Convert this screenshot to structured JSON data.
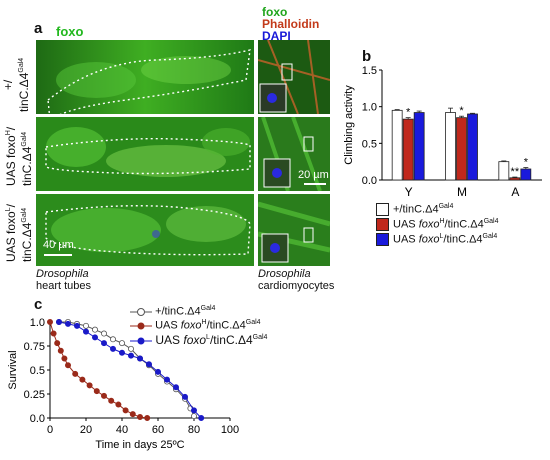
{
  "panel_a": {
    "letter": "a",
    "foxo_label": "foxo",
    "right_labels": {
      "foxo": "foxo",
      "phalloidin": "Phalloidin",
      "dapi": "DAPI"
    },
    "row_labels": [
      [
        "+/",
        "tinC.Δ4"
      ],
      [
        "UAS foxo",
        "tinC.Δ4"
      ],
      [
        "UAS foxo",
        "tinC.Δ4"
      ]
    ],
    "scale_left": "40 µm",
    "scale_right": "20 µm",
    "caption_left": [
      "Drosophila",
      "heart tubes"
    ],
    "caption_right": [
      "Drosophila",
      "cardiomyocytes"
    ]
  },
  "chart_data": [
    {
      "type": "bar",
      "panel": "b",
      "ylabel": "Climbing activity",
      "categories": [
        "Y",
        "M",
        "A"
      ],
      "ylim": [
        0,
        1.5
      ],
      "yticks": [
        "0.0",
        "0.5",
        "1.0",
        "1.5"
      ],
      "series": [
        {
          "name": "+/tinC.Δ4Gal4",
          "color": "#ffffff",
          "values": [
            0.95,
            0.92,
            0.25
          ],
          "errors": [
            0.01,
            0.06,
            0.01
          ]
        },
        {
          "name": "UAS foxoH/tinC.Δ4Gal4",
          "color": "#c0281c",
          "values": [
            0.83,
            0.85,
            0.03
          ],
          "errors": [
            0.02,
            0.02,
            0.01
          ]
        },
        {
          "name": "UAS foxoL/tinC.Δ4Gal4",
          "color": "#1a1adc",
          "values": [
            0.92,
            0.9,
            0.15
          ],
          "errors": [
            0.02,
            0.01,
            0.02
          ]
        }
      ],
      "annotations": [
        {
          "category": "Y",
          "series": 1,
          "text": "*"
        },
        {
          "category": "M",
          "series": 1,
          "text": "*"
        },
        {
          "category": "A",
          "series": 1,
          "text": "**"
        },
        {
          "category": "A",
          "series": 2,
          "text": "*"
        }
      ]
    },
    {
      "type": "line",
      "panel": "c",
      "ylabel": "Survival",
      "xlabel": "Time in days 25ºC",
      "xlim": [
        0,
        100
      ],
      "ylim": [
        0,
        1.0
      ],
      "xticks": [
        "0",
        "20",
        "40",
        "60",
        "80",
        "100"
      ],
      "yticks": [
        "0.0",
        "0.25",
        "0.5",
        "0.75",
        "1.0"
      ],
      "series": [
        {
          "name": "+/tinC.Δ4Gal4",
          "marker": "open",
          "color": "#555555",
          "x": [
            5,
            10,
            15,
            20,
            25,
            30,
            35,
            40,
            45,
            50,
            55,
            60,
            65,
            70,
            75,
            78,
            80
          ],
          "y": [
            1.0,
            1.0,
            0.98,
            0.96,
            0.92,
            0.88,
            0.82,
            0.78,
            0.72,
            0.62,
            0.55,
            0.46,
            0.38,
            0.3,
            0.2,
            0.1,
            0.02
          ]
        },
        {
          "name": "UAS foxoH/tinC.Δ4Gal4",
          "marker": "filled",
          "color": "#9a2a1a",
          "x": [
            0,
            2,
            4,
            6,
            8,
            10,
            14,
            18,
            22,
            26,
            30,
            34,
            38,
            42,
            46,
            50,
            54
          ],
          "y": [
            1.0,
            0.88,
            0.78,
            0.7,
            0.62,
            0.55,
            0.46,
            0.4,
            0.34,
            0.28,
            0.23,
            0.18,
            0.14,
            0.08,
            0.04,
            0.01,
            0.0
          ]
        },
        {
          "name": "UAS foxoL/tinC.Δ4Gal4",
          "marker": "filled",
          "color": "#1a1ac8",
          "x": [
            5,
            10,
            15,
            20,
            25,
            30,
            35,
            40,
            45,
            50,
            55,
            60,
            65,
            70,
            75,
            80,
            84
          ],
          "y": [
            1.0,
            0.98,
            0.96,
            0.9,
            0.84,
            0.78,
            0.72,
            0.68,
            0.65,
            0.62,
            0.56,
            0.48,
            0.4,
            0.32,
            0.22,
            0.08,
            0.0
          ]
        }
      ]
    }
  ],
  "panel_b_letter": "b",
  "panel_c_letter": "c",
  "legend_b": [
    {
      "base": "+/tinC.Δ4",
      "sup": "Gal4",
      "color": "#ffffff"
    },
    {
      "base_pre": "UAS ",
      "italic": "foxo",
      "sup1": "H",
      "base_post": "/tinC.Δ4",
      "sup": "Gal4",
      "color": "#c0281c"
    },
    {
      "base_pre": "UAS ",
      "italic": "foxo",
      "sup1": "L",
      "base_post": "/tinC.Δ4",
      "sup": "Gal4",
      "color": "#1a1adc"
    }
  ],
  "superscripts": {
    "gal4": "Gal4",
    "H": "H",
    "L": "L"
  }
}
